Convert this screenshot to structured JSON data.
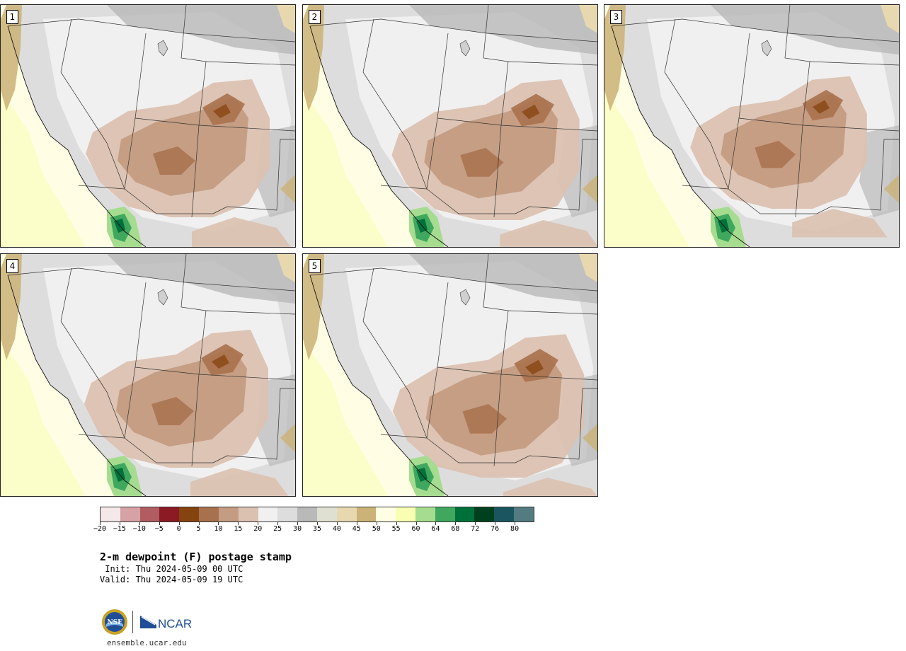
{
  "panels": [
    {
      "label": "1"
    },
    {
      "label": "2"
    },
    {
      "label": "3"
    },
    {
      "label": "4"
    },
    {
      "label": "5"
    }
  ],
  "colorbar": {
    "colors": [
      "#f4e8e8",
      "#d6a2a5",
      "#b05d62",
      "#8b1a24",
      "#85430f",
      "#a8714d",
      "#c39c82",
      "#dbc1b0",
      "#f0f0f0",
      "#dddddd",
      "#b9b9b9",
      "#e0e0d2",
      "#e8d8b0",
      "#cbb276",
      "#fffde3",
      "#f8ffb2",
      "#a6dc8f",
      "#3fa85e",
      "#00703a",
      "#00401f",
      "#1b5660",
      "#537c80"
    ],
    "ticks": [
      "−20",
      "−15",
      "−10",
      "−5",
      "0",
      "5",
      "10",
      "15",
      "20",
      "25",
      "30",
      "35",
      "40",
      "45",
      "50",
      "55",
      "60",
      "64",
      "68",
      "72",
      "76",
      "80"
    ]
  },
  "title": "2-m dewpoint (F) postage stamp",
  "init_line": " Init: Thu 2024-05-09 00 UTC",
  "valid_line": "Valid: Thu 2024-05-09 19 UTC",
  "logos": {
    "nsf_text": "NSF",
    "ncar_text": "NCAR"
  },
  "site_url": "ensemble.ucar.edu"
}
